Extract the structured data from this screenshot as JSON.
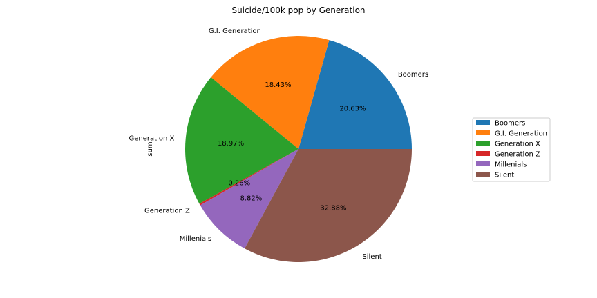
{
  "chart_data": {
    "type": "pie",
    "title": "Suicide/100k pop by Generation",
    "ylabel": "sum",
    "legend_position": "right",
    "slices": [
      {
        "label": "Boomers",
        "percent": 20.63,
        "percent_label": "20.63%",
        "color": "#1f77b4"
      },
      {
        "label": "G.I. Generation",
        "percent": 18.43,
        "percent_label": "18.43%",
        "color": "#ff7f0e"
      },
      {
        "label": "Generation X",
        "percent": 18.97,
        "percent_label": "18.97%",
        "color": "#2ca02c"
      },
      {
        "label": "Generation Z",
        "percent": 0.26,
        "percent_label": "0.26%",
        "color": "#d62728"
      },
      {
        "label": "Millenials",
        "percent": 8.82,
        "percent_label": "8.82%",
        "color": "#9467bd"
      },
      {
        "label": "Silent",
        "percent": 32.88,
        "percent_label": "32.88%",
        "color": "#8c564b"
      }
    ]
  }
}
